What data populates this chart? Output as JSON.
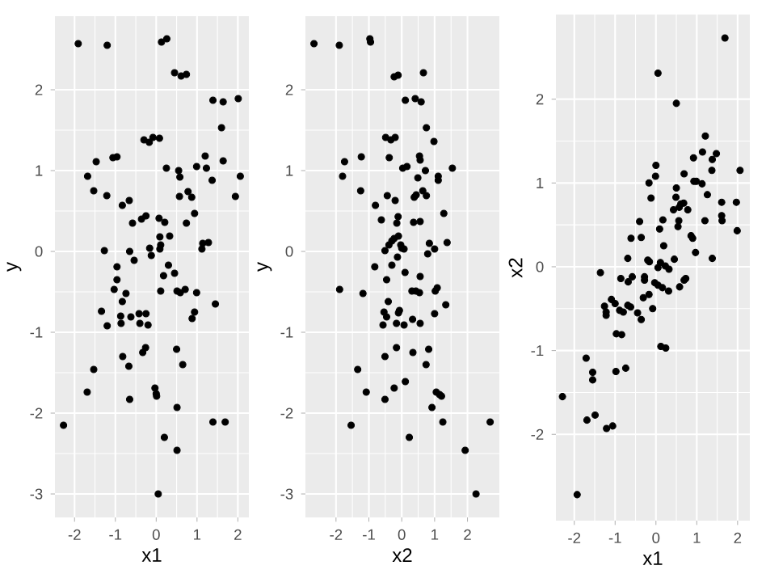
{
  "chart_data": [
    {
      "type": "scatter",
      "xlabel": "x1",
      "ylabel": "y",
      "color": "#000000",
      "marker": "circle",
      "grid": true,
      "xlim": [
        -2.48,
        2.27
      ],
      "ylim": [
        -3.29,
        2.91
      ],
      "xticks": [
        -2,
        -1,
        0,
        1,
        2
      ],
      "yticks": [
        -3,
        -2,
        -1,
        0,
        1,
        2
      ],
      "x": [
        -1.91,
        -1.2,
        0.13,
        0.26,
        0.45,
        0.61,
        0.74,
        1.39,
        1.64,
        2.01,
        1.6,
        -0.3,
        -0.17,
        -0.08,
        0.08,
        -0.96,
        -1.06,
        -1.47,
        -1.68,
        -1.53,
        -1.21,
        -0.66,
        -0.83,
        0.25,
        0.55,
        0.58,
        0.99,
        1.2,
        1.23,
        1.37,
        1.64,
        2.06,
        1.94,
        0.57,
        0.78,
        0.87,
        0.94,
        0.74,
        -0.25,
        -0.36,
        -0.58,
        0.07,
        0.21,
        0.33,
        0.09,
        0.11,
        0.09,
        -0.16,
        -0.12,
        -0.54,
        -0.65,
        -1.27,
        1.14,
        1.28,
        1.12,
        -0.96,
        -0.96,
        -1.03,
        -0.74,
        -0.83,
        0.3,
        0.45,
        0.18,
        0.11,
        0.51,
        0.59,
        0.71,
        0.99,
        1.45,
        -1.34,
        -1.2,
        -0.87,
        -0.86,
        -0.62,
        -0.42,
        -0.25,
        -0.4,
        -0.2,
        0.94,
        0.88,
        -0.82,
        -0.26,
        -0.33,
        0.5,
        0.65,
        -0.67,
        -0.65,
        -1.53,
        -1.69,
        -0.03,
        0.0,
        0.01,
        0.51,
        -2.27,
        0.2,
        0.51,
        1.39,
        1.69,
        0.05
      ],
      "values": [
        2.57,
        2.55,
        2.59,
        2.63,
        2.21,
        2.17,
        2.19,
        1.87,
        1.85,
        1.89,
        1.53,
        1.38,
        1.35,
        1.41,
        1.4,
        1.17,
        1.16,
        1.11,
        0.93,
        0.75,
        0.69,
        0.63,
        0.57,
        1.03,
        1.0,
        0.92,
        1.05,
        1.18,
        1.03,
        0.88,
        1.12,
        0.93,
        0.68,
        0.68,
        0.74,
        0.67,
        0.47,
        0.35,
        0.44,
        0.4,
        0.35,
        0.41,
        0.36,
        0.19,
        0.18,
        0.08,
        0.03,
        0.04,
        -0.05,
        -0.11,
        0.0,
        0.01,
        0.1,
        0.11,
        0.03,
        -0.19,
        -0.35,
        -0.47,
        -0.52,
        -0.62,
        -0.17,
        -0.27,
        -0.3,
        -0.49,
        -0.49,
        -0.51,
        -0.47,
        -0.51,
        -0.65,
        -0.74,
        -0.92,
        -0.8,
        -0.89,
        -0.81,
        -0.77,
        -0.77,
        -0.89,
        -0.91,
        -0.75,
        -0.83,
        -1.3,
        -1.19,
        -1.25,
        -1.21,
        -1.4,
        -1.42,
        -1.83,
        -1.46,
        -1.74,
        -1.69,
        -1.76,
        -1.79,
        -1.93,
        -2.15,
        -2.3,
        -2.46,
        -2.11,
        -2.11,
        -3.0
      ]
    },
    {
      "type": "scatter",
      "xlabel": "x2",
      "ylabel": "y",
      "color": "#000000",
      "marker": "circle",
      "grid": true,
      "xlim": [
        -2.93,
        2.97
      ],
      "ylim": [
        -3.29,
        2.91
      ],
      "xticks": [
        -2,
        -1,
        0,
        1,
        2
      ],
      "yticks": [
        -3,
        -2,
        -1,
        0,
        1,
        2
      ],
      "x": [
        -2.67,
        -1.9,
        -0.97,
        -0.95,
        -0.23,
        -0.11,
        0.66,
        0.11,
        0.41,
        0.59,
        0.75,
        0.98,
        -0.49,
        -0.33,
        -0.2,
        -0.38,
        -1.23,
        -1.74,
        -1.8,
        -1.25,
        -0.8,
        -0.44,
        -0.2,
        -0.62,
        -0.11,
        -0.15,
        0.36,
        0.56,
        0.03,
        0.16,
        0.49,
        0.54,
        0.56,
        0.72,
        1.11,
        1.11,
        1.54,
        0.38,
        0.44,
        0.64,
        0.75,
        1.28,
        -0.23,
        -0.1,
        -0.3,
        -0.39,
        -0.51,
        0.0,
        0.07,
        -0.03,
        -0.13,
        -0.3,
        -0.82,
        -0.46,
        0.1,
        0.84,
        1.38,
        1.0,
        0.79,
        -1.89,
        -1.18,
        -0.41,
        0.31,
        0.43,
        0.54,
        0.56,
        1.02,
        1.08,
        1.34,
        1.0,
        -0.54,
        -0.46,
        -0.57,
        -0.1,
        -0.07,
        -0.16,
        0.07,
        0.33,
        0.56,
        -0.16,
        -0.51,
        0.34,
        0.82,
        0.74,
        -1.34,
        0.11,
        -0.23,
        -1.08,
        -0.51,
        1.05,
        1.15,
        1.21,
        0.92,
        -1.54,
        1.25,
        2.69,
        0.23,
        1.93,
        2.26
      ],
      "values": [
        2.57,
        2.55,
        2.63,
        2.59,
        2.16,
        2.18,
        2.21,
        1.87,
        1.89,
        1.85,
        1.53,
        1.36,
        1.41,
        1.38,
        1.41,
        1.16,
        1.17,
        1.11,
        0.93,
        0.75,
        0.57,
        0.69,
        0.63,
        0.39,
        0.43,
        0.35,
        0.36,
        0.37,
        1.03,
        1.05,
        0.91,
        1.18,
        1.13,
        1.0,
        0.93,
        0.88,
        1.03,
        0.67,
        0.7,
        0.75,
        0.69,
        0.47,
        0.16,
        0.19,
        0.13,
        0.08,
        0.01,
        0.04,
        0.03,
        0.08,
        -0.07,
        -0.17,
        -0.19,
        -0.35,
        -0.26,
        0.1,
        0.11,
        0.03,
        -0.03,
        -0.47,
        -0.52,
        -0.62,
        -0.49,
        -0.49,
        -0.51,
        -0.31,
        -0.49,
        -0.45,
        -0.66,
        -0.77,
        -0.75,
        -0.81,
        -0.91,
        -0.76,
        -0.73,
        -0.89,
        -0.91,
        -0.84,
        -0.89,
        -1.19,
        -1.3,
        -1.25,
        -1.21,
        -1.4,
        -1.46,
        -1.61,
        -1.69,
        -1.74,
        -1.83,
        -1.74,
        -1.77,
        -1.79,
        -1.93,
        -2.15,
        -2.11,
        -2.11,
        -2.3,
        -2.46,
        -3.0
      ]
    },
    {
      "type": "scatter",
      "xlabel": "x1",
      "ylabel": "x2",
      "color": "#000000",
      "marker": "circle",
      "grid": true,
      "xlim": [
        -2.45,
        2.3
      ],
      "ylim": [
        -3.03,
        3.01
      ],
      "xticks": [
        -2,
        -1,
        0,
        1,
        2
      ],
      "yticks": [
        -2,
        -1,
        0,
        1,
        2
      ],
      "x": [
        1.69,
        0.05,
        0.5,
        1.21,
        1.14,
        1.48,
        1.38,
        0.92,
        1.37,
        2.06,
        0.69,
        0.0,
        -0.01,
        -0.17,
        0.93,
        0.99,
        1.13,
        1.26,
        -0.12,
        0.5,
        0.49,
        0.61,
        0.68,
        0.57,
        0.78,
        0.43,
        1.61,
        1.97,
        1.61,
        1.62,
        1.2,
        0.56,
        0.54,
        0.17,
        0.09,
        -0.4,
        -0.36,
        -0.61,
        0.86,
        0.9,
        1.99,
        0.97,
        0.19,
        -0.69,
        0.45,
        1.38,
        -0.2,
        -0.16,
        -1.36,
        0.11,
        0.05,
        0.23,
        0.32,
        0.73,
        0.69,
        -0.28,
        -0.28,
        -0.03,
        0.05,
        0.16,
        0.31,
        -0.58,
        -0.68,
        -0.86,
        -0.17,
        -0.31,
        -0.08,
        0.58,
        -1.26,
        -1.09,
        -1.0,
        -1.22,
        -1.22,
        -0.89,
        -0.8,
        -0.69,
        -0.62,
        -0.45,
        -0.36,
        -0.97,
        -0.84,
        0.12,
        0.24,
        -1.71,
        -1.55,
        -1.55,
        -0.98,
        -0.74,
        -2.29,
        -1.69,
        -1.49,
        -1.21,
        -1.06,
        -1.93
      ],
      "values": [
        2.73,
        2.31,
        1.95,
        1.56,
        1.37,
        1.35,
        1.28,
        1.3,
        1.15,
        1.15,
        1.11,
        1.21,
        1.08,
        1.0,
        1.02,
        1.02,
        0.99,
        0.86,
        0.82,
        0.94,
        0.83,
        0.75,
        0.76,
        0.71,
        0.68,
        0.68,
        0.77,
        0.77,
        0.61,
        0.55,
        0.55,
        0.55,
        0.48,
        0.56,
        0.45,
        0.54,
        0.35,
        0.34,
        0.37,
        0.34,
        0.43,
        0.17,
        0.25,
        0.1,
        0.09,
        0.1,
        0.08,
        0.06,
        -0.07,
        0.05,
        -0.01,
        0.01,
        -0.03,
        -0.14,
        -0.16,
        -0.12,
        -0.16,
        -0.19,
        -0.22,
        -0.25,
        -0.29,
        -0.12,
        -0.18,
        -0.14,
        -0.33,
        -0.37,
        -0.5,
        -0.24,
        -0.47,
        -0.39,
        -0.44,
        -0.54,
        -0.58,
        -0.52,
        -0.54,
        -0.46,
        -0.48,
        -0.55,
        -0.63,
        -0.8,
        -0.81,
        -0.95,
        -0.97,
        -1.09,
        -1.26,
        -1.35,
        -1.25,
        -1.21,
        -1.55,
        -1.83,
        -1.77,
        -1.93,
        -1.9,
        -2.72
      ]
    }
  ]
}
